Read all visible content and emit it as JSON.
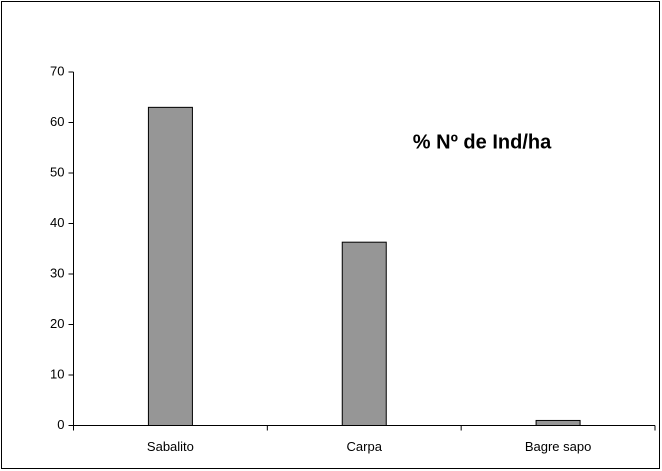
{
  "chart_data": {
    "type": "bar",
    "title": "% Nº de Ind/ha",
    "categories": [
      "Sabalito",
      "Carpa",
      "Bagre sapo"
    ],
    "values": [
      63,
      36.3,
      1
    ],
    "color": "#969696",
    "ylim": [
      0,
      70
    ],
    "yticks": [
      0,
      10,
      20,
      30,
      40,
      50,
      60,
      70
    ],
    "grid": false
  }
}
